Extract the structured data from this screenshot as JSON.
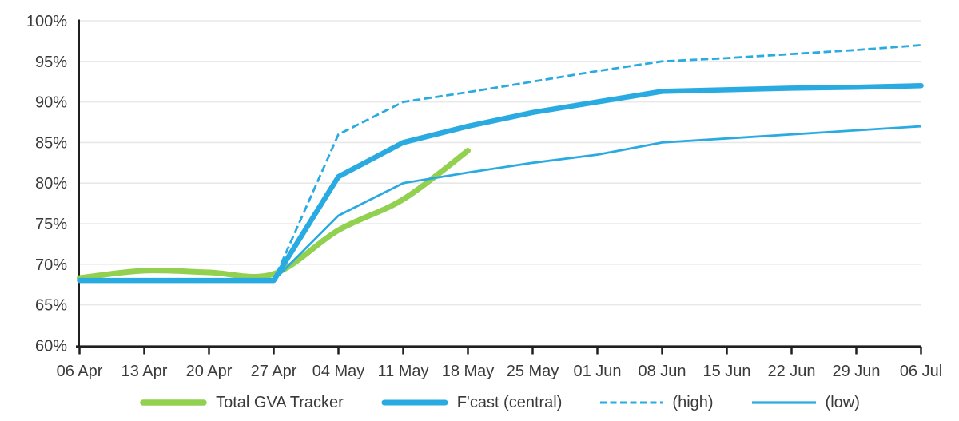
{
  "chart_data": {
    "type": "line",
    "title": "",
    "grid": true,
    "legend_position": "bottom",
    "x_axis": {
      "tick_labels": [
        "06 Apr",
        "13 Apr",
        "20 Apr",
        "27 Apr",
        "04 May",
        "11 May",
        "18 May",
        "25 May",
        "01 Jun",
        "08 Jun",
        "15 Jun",
        "22 Jun",
        "29 Jun",
        "06 Jul"
      ]
    },
    "y_axis": {
      "min": 60,
      "max": 100,
      "step": 5,
      "tick_labels": [
        "60%",
        "65%",
        "70%",
        "75%",
        "80%",
        "85%",
        "90%",
        "95%",
        "100%"
      ]
    },
    "series": [
      {
        "name": "Total GVA Tracker",
        "key": "tracker",
        "color": "#92D050",
        "line_style": "solid",
        "line_width": 7,
        "smooth": true,
        "values": [
          68.3,
          69.2,
          69.0,
          68.8,
          74.2,
          78.0,
          84.0,
          null,
          null,
          null,
          null,
          null,
          null,
          null
        ]
      },
      {
        "name": "F'cast (central)",
        "key": "central",
        "color": "#29ABE2",
        "line_style": "solid",
        "line_width": 6.5,
        "smooth": false,
        "values": [
          68,
          68,
          68,
          68,
          80.8,
          85.0,
          87.0,
          88.7,
          90.0,
          91.3,
          91.5,
          91.7,
          91.8,
          92.0
        ]
      },
      {
        "name": "(high)",
        "key": "high",
        "color": "#29ABE2",
        "line_style": "dashed",
        "line_width": 2.8,
        "smooth": false,
        "values": [
          68,
          68,
          68,
          68,
          86.0,
          90.0,
          91.2,
          92.5,
          93.8,
          95.0,
          95.4,
          95.9,
          96.4,
          97.0
        ]
      },
      {
        "name": "(low)",
        "key": "low",
        "color": "#29ABE2",
        "line_style": "solid",
        "line_width": 2.8,
        "smooth": false,
        "values": [
          68,
          68,
          68,
          68,
          76.0,
          80.0,
          81.3,
          82.5,
          83.5,
          85.0,
          85.5,
          86.0,
          86.5,
          87.0
        ]
      }
    ],
    "colors": {
      "grid": "#E8E8E8",
      "axis": "#1F1F1F",
      "text": "#3A3A3A"
    }
  }
}
